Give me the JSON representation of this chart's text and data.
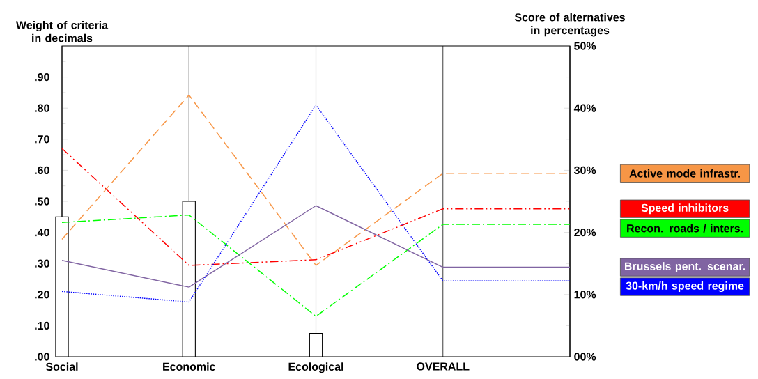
{
  "chart_data": {
    "type": "line",
    "ylabel": "Weight of criteria in decimals",
    "y2label": "Score of alternatives in percentages",
    "categories": [
      "Social",
      "Economic",
      "Ecological",
      "OVERALL",
      null
    ],
    "ylim": [
      0,
      1
    ],
    "yticks": [
      {
        "value": 0,
        "label": ".00"
      },
      {
        "value": 0.05,
        "label": null
      },
      {
        "value": 0.1,
        "label": ".10"
      },
      {
        "value": 0.15,
        "label": null
      },
      {
        "value": 0.2,
        "label": ".20"
      },
      {
        "value": 0.25,
        "label": null
      },
      {
        "value": 0.3,
        "label": ".30"
      },
      {
        "value": 0.35,
        "label": null
      },
      {
        "value": 0.4,
        "label": ".40"
      },
      {
        "value": 0.45,
        "label": null
      },
      {
        "value": 0.5,
        "label": ".50"
      },
      {
        "value": 0.55,
        "label": null
      },
      {
        "value": 0.6,
        "label": ".60"
      },
      {
        "value": 0.65,
        "label": null
      },
      {
        "value": 0.7,
        "label": ".70"
      },
      {
        "value": 0.75,
        "label": null
      },
      {
        "value": 0.8,
        "label": ".80"
      },
      {
        "value": 0.85,
        "label": null
      },
      {
        "value": 0.9,
        "label": ".90"
      },
      {
        "value": 0.95,
        "label": null
      }
    ],
    "y2lim": [
      0,
      50
    ],
    "y2ticks": [
      {
        "value": 0,
        "label": "00%"
      },
      {
        "value": 5,
        "label": null
      },
      {
        "value": 10,
        "label": "10%"
      },
      {
        "value": 15,
        "label": null
      },
      {
        "value": 20,
        "label": "20%"
      },
      {
        "value": 25,
        "label": null
      },
      {
        "value": 30,
        "label": "30%"
      },
      {
        "value": 35,
        "label": null
      },
      {
        "value": 40,
        "label": "40%"
      },
      {
        "value": 45,
        "label": null
      },
      {
        "value": 50,
        "label": "50%"
      }
    ],
    "grid": "x",
    "legend": "right",
    "series": [
      {
        "type": "bar",
        "color": "#ffffff",
        "values": [
          0.45,
          0.5,
          0.075,
          null,
          null
        ]
      },
      {
        "name": "Active mode infrastr.",
        "color": "#f79646",
        "axis": "y2",
        "line_style": "dashed",
        "values": [
          18.9,
          42.1,
          14.7,
          29.5,
          29.5
        ]
      },
      {
        "name": "Speed inhibitors",
        "color": "#ff0000",
        "axis": "y2",
        "line_style": "dashdotdot",
        "values": [
          33.5,
          14.7,
          15.6,
          23.8,
          23.8
        ]
      },
      {
        "name": "Recon. roads / inters.",
        "color": "#00ff00",
        "axis": "y2",
        "line_style": "dashdot",
        "values": [
          21.6,
          22.8,
          6.5,
          21.3,
          21.3
        ]
      },
      {
        "name": "Brussels pent. scenar.",
        "color": "#8064a2",
        "axis": "y2",
        "line_style": "solid",
        "values": [
          15.5,
          11.2,
          24.3,
          14.4,
          14.4
        ]
      },
      {
        "name": "30-km/h speed regime",
        "color": "#0000ff",
        "axis": "y2",
        "line_style": "dotted",
        "values": [
          10.5,
          8.8,
          40.5,
          12.2,
          12.2
        ]
      }
    ]
  }
}
